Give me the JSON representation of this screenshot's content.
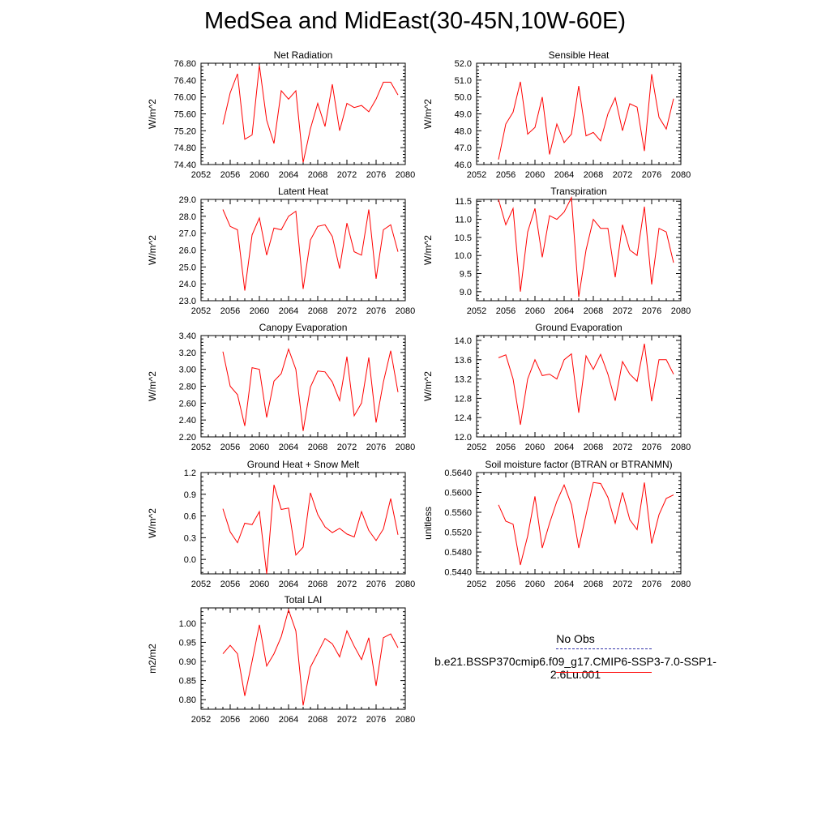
{
  "title": "MedSea and MidEast(30-45N,10W-60E)",
  "colors": {
    "model": "#ff0000",
    "obs": "#3333aa",
    "axis": "#000000"
  },
  "legend": {
    "obs_label": "No Obs",
    "model_label": "b.e21.BSSP370cmip6.f09_g17.CMIP6-SSP3-7.0-SSP1-2.6Lu.001"
  },
  "chart_data": [
    {
      "type": "line",
      "title": "Net Radiation",
      "xlabel": "",
      "ylabel": "W/m^2",
      "xlim": [
        2052,
        2080
      ],
      "ylim": [
        74.4,
        76.8
      ],
      "xticks": [
        "2052",
        "2056",
        "2060",
        "2064",
        "2068",
        "2072",
        "2076",
        "2080"
      ],
      "yticks": [
        "74.40",
        "74.80",
        "75.20",
        "75.60",
        "76.00",
        "76.40",
        "76.80"
      ],
      "series": [
        {
          "x": [
            2055,
            2056,
            2057,
            2058,
            2059,
            2060,
            2061,
            2062,
            2063,
            2064,
            2065,
            2066,
            2067,
            2068,
            2069,
            2070,
            2071,
            2072,
            2073,
            2074,
            2075,
            2076,
            2077,
            2078,
            2079
          ],
          "values": [
            75.35,
            76.1,
            76.55,
            75.0,
            75.1,
            76.75,
            75.45,
            74.9,
            76.15,
            75.95,
            76.15,
            74.45,
            75.25,
            75.85,
            75.3,
            76.3,
            75.2,
            75.85,
            75.75,
            75.8,
            75.65,
            75.95,
            76.35,
            76.35,
            76.05
          ]
        }
      ]
    },
    {
      "type": "line",
      "title": "Sensible Heat",
      "xlabel": "",
      "ylabel": "W/m^2",
      "xlim": [
        2052,
        2080
      ],
      "ylim": [
        46.0,
        52.0
      ],
      "xticks": [
        "2052",
        "2056",
        "2060",
        "2064",
        "2068",
        "2072",
        "2076",
        "2080"
      ],
      "yticks": [
        "46.0",
        "47.0",
        "48.0",
        "49.0",
        "50.0",
        "51.0",
        "52.0"
      ],
      "series": [
        {
          "x": [
            2055,
            2056,
            2057,
            2058,
            2059,
            2060,
            2061,
            2062,
            2063,
            2064,
            2065,
            2066,
            2067,
            2068,
            2069,
            2070,
            2071,
            2072,
            2073,
            2074,
            2075,
            2076,
            2077,
            2078,
            2079
          ],
          "values": [
            46.3,
            48.4,
            49.1,
            50.9,
            47.8,
            48.2,
            50.0,
            46.6,
            48.4,
            47.3,
            47.8,
            50.65,
            47.7,
            47.9,
            47.4,
            49.0,
            49.95,
            48.0,
            49.6,
            49.4,
            46.8,
            51.35,
            48.8,
            48.1,
            49.9
          ]
        }
      ]
    },
    {
      "type": "line",
      "title": "Latent Heat",
      "xlabel": "",
      "ylabel": "W/m^2",
      "xlim": [
        2052,
        2080
      ],
      "ylim": [
        23.0,
        29.0
      ],
      "xticks": [
        "2052",
        "2056",
        "2060",
        "2064",
        "2068",
        "2072",
        "2076",
        "2080"
      ],
      "yticks": [
        "23.0",
        "24.0",
        "25.0",
        "26.0",
        "27.0",
        "28.0",
        "29.0"
      ],
      "series": [
        {
          "x": [
            2055,
            2056,
            2057,
            2058,
            2059,
            2060,
            2061,
            2062,
            2063,
            2064,
            2065,
            2066,
            2067,
            2068,
            2069,
            2070,
            2071,
            2072,
            2073,
            2074,
            2075,
            2076,
            2077,
            2078,
            2079
          ],
          "values": [
            28.4,
            27.4,
            27.2,
            23.6,
            26.9,
            27.9,
            25.7,
            27.3,
            27.2,
            28.0,
            28.3,
            23.7,
            26.6,
            27.4,
            27.5,
            26.8,
            24.9,
            27.6,
            25.9,
            25.7,
            28.4,
            24.3,
            27.2,
            27.5,
            25.9
          ]
        }
      ]
    },
    {
      "type": "line",
      "title": "Transpiration",
      "xlabel": "",
      "ylabel": "W/m^2",
      "xlim": [
        2052,
        2080
      ],
      "ylim": [
        8.75,
        11.55
      ],
      "xticks": [
        "2052",
        "2056",
        "2060",
        "2064",
        "2068",
        "2072",
        "2076",
        "2080"
      ],
      "yticks": [
        "9.0",
        "9.5",
        "10.0",
        "10.5",
        "11.0",
        "11.5"
      ],
      "series": [
        {
          "x": [
            2055,
            2056,
            2057,
            2058,
            2059,
            2060,
            2061,
            2062,
            2063,
            2064,
            2065,
            2066,
            2067,
            2068,
            2069,
            2070,
            2071,
            2072,
            2073,
            2074,
            2075,
            2076,
            2077,
            2078,
            2079
          ],
          "values": [
            11.55,
            10.85,
            11.3,
            9.0,
            10.65,
            11.3,
            9.95,
            11.1,
            11.0,
            11.2,
            11.6,
            8.85,
            10.15,
            11.0,
            10.75,
            10.75,
            9.4,
            10.85,
            10.15,
            10.0,
            11.35,
            9.2,
            10.75,
            10.65,
            9.8
          ]
        }
      ]
    },
    {
      "type": "line",
      "title": "Canopy Evaporation",
      "xlabel": "",
      "ylabel": "W/m^2",
      "xlim": [
        2052,
        2080
      ],
      "ylim": [
        2.2,
        3.4
      ],
      "xticks": [
        "2052",
        "2056",
        "2060",
        "2064",
        "2068",
        "2072",
        "2076",
        "2080"
      ],
      "yticks": [
        "2.20",
        "2.40",
        "2.60",
        "2.80",
        "3.00",
        "3.20",
        "3.40"
      ],
      "series": [
        {
          "x": [
            2055,
            2056,
            2057,
            2058,
            2059,
            2060,
            2061,
            2062,
            2063,
            2064,
            2065,
            2066,
            2067,
            2068,
            2069,
            2070,
            2071,
            2072,
            2073,
            2074,
            2075,
            2076,
            2077,
            2078,
            2079
          ],
          "values": [
            3.21,
            2.8,
            2.7,
            2.33,
            3.02,
            3.0,
            2.43,
            2.86,
            2.95,
            3.24,
            3.0,
            2.27,
            2.79,
            2.98,
            2.97,
            2.85,
            2.63,
            3.15,
            2.45,
            2.6,
            3.14,
            2.37,
            2.85,
            3.22,
            2.73
          ]
        }
      ]
    },
    {
      "type": "line",
      "title": "Ground Evaporation",
      "xlabel": "",
      "ylabel": "W/m^2",
      "xlim": [
        2052,
        2080
      ],
      "ylim": [
        12.0,
        14.1
      ],
      "xticks": [
        "2052",
        "2056",
        "2060",
        "2064",
        "2068",
        "2072",
        "2076",
        "2080"
      ],
      "yticks": [
        "12.0",
        "12.4",
        "12.8",
        "13.2",
        "13.6",
        "14.0"
      ],
      "series": [
        {
          "x": [
            2055,
            2056,
            2057,
            2058,
            2059,
            2060,
            2061,
            2062,
            2063,
            2064,
            2065,
            2066,
            2067,
            2068,
            2069,
            2070,
            2071,
            2072,
            2073,
            2074,
            2075,
            2076,
            2077,
            2078,
            2079
          ],
          "values": [
            13.64,
            13.7,
            13.2,
            12.25,
            13.2,
            13.6,
            13.27,
            13.3,
            13.2,
            13.6,
            13.72,
            12.5,
            13.68,
            13.4,
            13.71,
            13.3,
            12.75,
            13.56,
            13.3,
            13.15,
            13.93,
            12.74,
            13.6,
            13.6,
            13.3
          ]
        }
      ]
    },
    {
      "type": "line",
      "title": "Ground Heat + Snow Melt",
      "xlabel": "",
      "ylabel": "W/m^2",
      "xlim": [
        2052,
        2080
      ],
      "ylim": [
        -0.2,
        1.2
      ],
      "xticks": [
        "2052",
        "2056",
        "2060",
        "2064",
        "2068",
        "2072",
        "2076",
        "2080"
      ],
      "yticks": [
        "0.0",
        "0.3",
        "0.6",
        "0.9",
        "1.2"
      ],
      "series": [
        {
          "x": [
            2055,
            2056,
            2057,
            2058,
            2059,
            2060,
            2061,
            2062,
            2063,
            2064,
            2065,
            2066,
            2067,
            2068,
            2069,
            2070,
            2071,
            2072,
            2073,
            2074,
            2075,
            2076,
            2077,
            2078,
            2079
          ],
          "values": [
            0.7,
            0.38,
            0.23,
            0.5,
            0.48,
            0.66,
            -0.2,
            1.03,
            0.69,
            0.71,
            0.06,
            0.17,
            0.92,
            0.62,
            0.45,
            0.37,
            0.43,
            0.35,
            0.31,
            0.66,
            0.4,
            0.26,
            0.42,
            0.84,
            0.34
          ]
        }
      ]
    },
    {
      "type": "line",
      "title": "Soil moisture factor (BTRAN or BTRANMN)",
      "xlabel": "",
      "ylabel": "unitless",
      "xlim": [
        2052,
        2080
      ],
      "ylim": [
        0.5436,
        0.564
      ],
      "xticks": [
        "2052",
        "2056",
        "2060",
        "2064",
        "2068",
        "2072",
        "2076",
        "2080"
      ],
      "yticks": [
        "0.5440",
        "0.5480",
        "0.5520",
        "0.5560",
        "0.5600",
        "0.5640"
      ],
      "series": [
        {
          "x": [
            2055,
            2056,
            2057,
            2058,
            2059,
            2060,
            2061,
            2062,
            2063,
            2064,
            2065,
            2066,
            2067,
            2068,
            2069,
            2070,
            2071,
            2072,
            2073,
            2074,
            2075,
            2076,
            2077,
            2078,
            2079
          ],
          "values": [
            0.5575,
            0.5542,
            0.5536,
            0.5454,
            0.5512,
            0.5592,
            0.5488,
            0.5538,
            0.5582,
            0.5615,
            0.5575,
            0.5488,
            0.5555,
            0.562,
            0.5618,
            0.559,
            0.5538,
            0.56,
            0.5545,
            0.5525,
            0.562,
            0.5497,
            0.5555,
            0.5588,
            0.5595
          ]
        }
      ]
    },
    {
      "type": "line",
      "title": "Total LAI",
      "xlabel": "",
      "ylabel": "m2/m2",
      "xlim": [
        2052,
        2080
      ],
      "ylim": [
        0.775,
        1.04
      ],
      "xticks": [
        "2052",
        "2056",
        "2060",
        "2064",
        "2068",
        "2072",
        "2076",
        "2080"
      ],
      "yticks": [
        "0.80",
        "0.85",
        "0.90",
        "0.95",
        "1.00"
      ],
      "series": [
        {
          "x": [
            2055,
            2056,
            2057,
            2058,
            2059,
            2060,
            2061,
            2062,
            2063,
            2064,
            2065,
            2066,
            2067,
            2068,
            2069,
            2070,
            2071,
            2072,
            2073,
            2074,
            2075,
            2076,
            2077,
            2078,
            2079
          ],
          "values": [
            0.92,
            0.942,
            0.92,
            0.81,
            0.9,
            0.996,
            0.888,
            0.92,
            0.965,
            1.035,
            0.98,
            0.785,
            0.885,
            0.922,
            0.96,
            0.946,
            0.912,
            0.98,
            0.94,
            0.905,
            0.962,
            0.836,
            0.962,
            0.972,
            0.936
          ]
        }
      ]
    }
  ]
}
